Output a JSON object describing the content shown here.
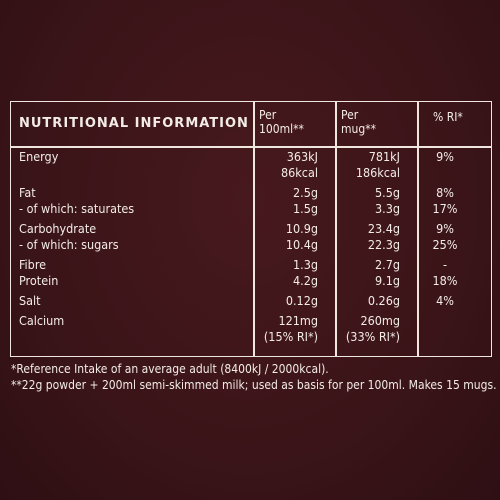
{
  "table": {
    "title": "NUTRITIONAL INFORMATION",
    "col1_line1": "Per",
    "col1_line2": "100ml**",
    "col2_line1": "Per",
    "col2_line2": "mug**",
    "col3": "% RI*",
    "rows": [
      {
        "label": "Energy",
        "per100": "363kJ",
        "perMug": "781kJ",
        "ri": "9%"
      },
      {
        "label": "",
        "per100": "86kcal",
        "perMug": "186kcal",
        "ri": ""
      },
      {
        "label": "Fat",
        "per100": "2.5g",
        "perMug": "5.5g",
        "ri": "8%"
      },
      {
        "label": "- of which: saturates",
        "per100": "1.5g",
        "perMug": "3.3g",
        "ri": "17%"
      },
      {
        "label": "Carbohydrate",
        "per100": "10.9g",
        "perMug": "23.4g",
        "ri": "9%"
      },
      {
        "label": "- of which: sugars",
        "per100": "10.4g",
        "perMug": "22.3g",
        "ri": "25%"
      },
      {
        "label": "Fibre",
        "per100": "1.3g",
        "perMug": "2.7g",
        "ri": "-"
      },
      {
        "label": "Protein",
        "per100": "4.2g",
        "perMug": "9.1g",
        "ri": "18%"
      },
      {
        "label": "Salt",
        "per100": "0.12g",
        "perMug": "0.26g",
        "ri": "4%"
      },
      {
        "label": "Calcium",
        "per100": "121mg",
        "perMug": "260mg",
        "ri": ""
      },
      {
        "label": "",
        "per100": "(15% RI*)",
        "perMug": "(33% RI*)",
        "ri": ""
      }
    ]
  },
  "footnotes": {
    "line1": "*Reference Intake of an average adult (8400kJ / 2000kcal).",
    "line2": "**22g powder + 200ml semi-skimmed milk; used as basis for per 100ml. Makes 15 mugs."
  }
}
